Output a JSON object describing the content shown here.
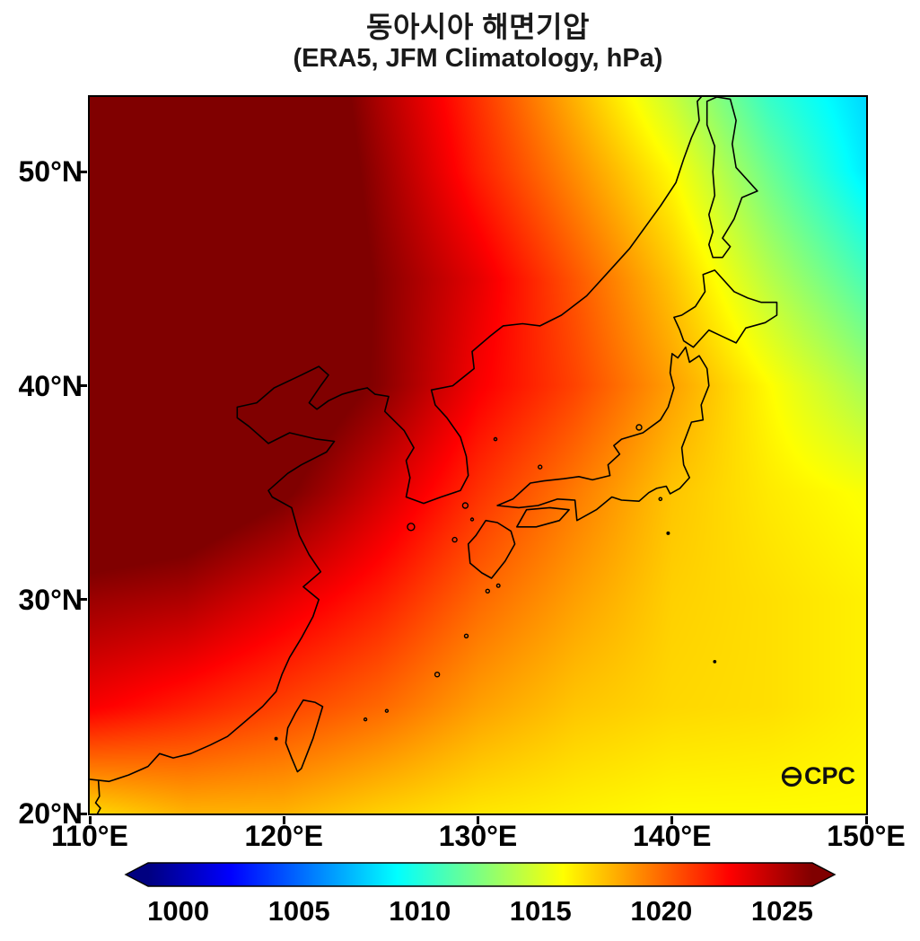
{
  "title": "동아시아 해면기압",
  "subtitle": "(ERA5, JFM Climatology, hPa)",
  "logo": {
    "text": "CPC",
    "icon": "globe-circle-icon"
  },
  "axes": {
    "x_ticks": [
      {
        "value": 110,
        "label": "110°E"
      },
      {
        "value": 120,
        "label": "120°E"
      },
      {
        "value": 130,
        "label": "130°E"
      },
      {
        "value": 140,
        "label": "140°E"
      },
      {
        "value": 150,
        "label": "150°E"
      }
    ],
    "y_ticks": [
      {
        "value": 50,
        "label": "50°N"
      },
      {
        "value": 40,
        "label": "40°N"
      },
      {
        "value": 30,
        "label": "30°N"
      },
      {
        "value": 20,
        "label": "20°N"
      }
    ]
  },
  "colorbar": {
    "vmin": 998.75,
    "vmax": 1026.25,
    "ticks": [
      {
        "value": 1000,
        "label": "1000"
      },
      {
        "value": 1005,
        "label": "1005"
      },
      {
        "value": 1010,
        "label": "1010"
      },
      {
        "value": 1015,
        "label": "1015"
      },
      {
        "value": 1020,
        "label": "1020"
      },
      {
        "value": 1025,
        "label": "1025"
      }
    ]
  },
  "chart_data": {
    "type": "heatmap",
    "title": "동아시아 해면기압",
    "subtitle": "(ERA5, JFM Climatology, hPa)",
    "units": "hPa",
    "lon_range": [
      110,
      150
    ],
    "lat_range": [
      20,
      53.5
    ],
    "lon": [
      110,
      115,
      120,
      125,
      130,
      135,
      140,
      145,
      150
    ],
    "lat": [
      20,
      25,
      30,
      35,
      40,
      45,
      50,
      53.5
    ],
    "values": [
      [
        1017,
        1018,
        1018,
        1017.2,
        1016.6,
        1016.3,
        1016,
        1016,
        1016
      ],
      [
        1023,
        1022,
        1021,
        1020,
        1018.5,
        1017.5,
        1017,
        1016.8,
        1016.3
      ],
      [
        1025.5,
        1025,
        1023.5,
        1022,
        1020,
        1018.5,
        1017.2,
        1016.8,
        1016.3
      ],
      [
        1028.5,
        1028,
        1026.5,
        1024,
        1021.5,
        1019.5,
        1017.5,
        1016.5,
        1015.8
      ],
      [
        1031,
        1030,
        1028,
        1026,
        1023,
        1021,
        1018.5,
        1016,
        1013.5
      ],
      [
        1033,
        1031,
        1029,
        1026,
        1023.5,
        1020.5,
        1017.5,
        1014,
        1011
      ],
      [
        1033,
        1032,
        1029,
        1025.5,
        1022,
        1019,
        1016,
        1012,
        1008.5
      ],
      [
        1033,
        1032,
        1029,
        1025,
        1021.5,
        1018,
        1014.5,
        1010.5,
        1008
      ]
    ],
    "colormap": "jet",
    "colormap_stops": [
      [
        0,
        "#000080"
      ],
      [
        0.125,
        "#0000ff"
      ],
      [
        0.375,
        "#00ffff"
      ],
      [
        0.625,
        "#ffff00"
      ],
      [
        0.875,
        "#ff0000"
      ],
      [
        1,
        "#800000"
      ]
    ],
    "coastlines": [
      {
        "name": "china-coast",
        "points": [
          [
            110,
            21.6
          ],
          [
            111,
            21.5
          ],
          [
            112,
            21.8
          ],
          [
            113,
            22.2
          ],
          [
            113.6,
            22.8
          ],
          [
            114.3,
            22.6
          ],
          [
            115.2,
            22.8
          ],
          [
            116.2,
            23.2
          ],
          [
            117.1,
            23.6
          ],
          [
            118,
            24.3
          ],
          [
            118.9,
            25.0
          ],
          [
            119.6,
            25.7
          ],
          [
            119.9,
            26.5
          ],
          [
            120.3,
            27.3
          ],
          [
            120.9,
            28.2
          ],
          [
            121.5,
            29.2
          ],
          [
            121.8,
            30.0
          ],
          [
            121.0,
            30.6
          ],
          [
            121.9,
            31.3
          ],
          [
            121.3,
            32.1
          ],
          [
            120.8,
            33.0
          ],
          [
            120.4,
            34.3
          ],
          [
            119.4,
            34.8
          ],
          [
            119.2,
            35.1
          ],
          [
            120.2,
            35.9
          ],
          [
            120.9,
            36.3
          ],
          [
            122.2,
            36.9
          ],
          [
            122.6,
            37.4
          ],
          [
            121.7,
            37.5
          ],
          [
            120.3,
            37.8
          ],
          [
            119.2,
            37.3
          ],
          [
            118.2,
            38.1
          ],
          [
            117.6,
            38.5
          ],
          [
            117.6,
            39.0
          ],
          [
            118.6,
            39.2
          ],
          [
            119.5,
            39.9
          ],
          [
            120.9,
            40.5
          ],
          [
            121.8,
            40.9
          ],
          [
            122.3,
            40.5
          ],
          [
            121.9,
            40.0
          ],
          [
            121.3,
            39.2
          ],
          [
            121.7,
            38.9
          ],
          [
            122.3,
            39.3
          ],
          [
            123.0,
            39.6
          ],
          [
            123.8,
            39.8
          ],
          [
            124.3,
            39.9
          ]
        ]
      },
      {
        "name": "korea-coast",
        "points": [
          [
            124.3,
            39.9
          ],
          [
            124.7,
            39.6
          ],
          [
            125.4,
            39.5
          ],
          [
            125.2,
            38.8
          ],
          [
            126.2,
            37.9
          ],
          [
            126.7,
            37.1
          ],
          [
            126.3,
            36.5
          ],
          [
            126.5,
            35.7
          ],
          [
            126.3,
            34.8
          ],
          [
            127.2,
            34.5
          ],
          [
            128.1,
            34.8
          ],
          [
            129.1,
            35.1
          ],
          [
            129.5,
            35.8
          ],
          [
            129.4,
            36.7
          ],
          [
            129.1,
            37.6
          ],
          [
            128.4,
            38.5
          ],
          [
            127.8,
            39.1
          ],
          [
            127.6,
            39.8
          ],
          [
            128.7,
            40.0
          ],
          [
            129.8,
            40.8
          ],
          [
            129.7,
            41.6
          ],
          [
            130.6,
            42.3
          ]
        ]
      },
      {
        "name": "russia-coast",
        "points": [
          [
            130.6,
            42.3
          ],
          [
            131.3,
            42.8
          ],
          [
            132.3,
            42.9
          ],
          [
            133.2,
            42.8
          ],
          [
            134.3,
            43.3
          ],
          [
            135.6,
            44.2
          ],
          [
            136.8,
            45.4
          ],
          [
            137.8,
            46.4
          ],
          [
            138.6,
            47.4
          ],
          [
            139.4,
            48.4
          ],
          [
            140.2,
            49.5
          ],
          [
            140.6,
            50.6
          ],
          [
            141.0,
            51.6
          ],
          [
            141.4,
            52.4
          ],
          [
            141.3,
            53.3
          ],
          [
            141.5,
            53.5
          ]
        ]
      },
      {
        "name": "leizhou-peninsula",
        "points": [
          [
            110.45,
            21.5
          ],
          [
            110.5,
            20.8
          ],
          [
            110.3,
            20.5
          ],
          [
            110.55,
            20.25
          ],
          [
            110.4,
            20.0
          ]
        ]
      },
      {
        "name": "kyushu",
        "points": [
          [
            130.2,
            31.25
          ],
          [
            129.6,
            31.7
          ],
          [
            129.5,
            32.6
          ],
          [
            129.9,
            33.0
          ],
          [
            130.4,
            33.7
          ],
          [
            131.0,
            33.6
          ],
          [
            131.7,
            33.2
          ],
          [
            131.9,
            32.6
          ],
          [
            131.4,
            31.8
          ],
          [
            130.7,
            31.0
          ],
          [
            130.2,
            31.25
          ]
        ]
      },
      {
        "name": "shikoku",
        "points": [
          [
            132.0,
            33.4
          ],
          [
            133.0,
            33.4
          ],
          [
            134.2,
            33.7
          ],
          [
            134.7,
            34.2
          ],
          [
            133.7,
            34.3
          ],
          [
            132.5,
            34.2
          ],
          [
            132.0,
            33.4
          ]
        ]
      },
      {
        "name": "honshu",
        "points": [
          [
            131.0,
            34.4
          ],
          [
            132.1,
            34.3
          ],
          [
            133.1,
            34.4
          ],
          [
            134.1,
            34.7
          ],
          [
            135.0,
            34.65
          ],
          [
            135.1,
            33.7
          ],
          [
            136.1,
            34.2
          ],
          [
            136.9,
            34.8
          ],
          [
            137.4,
            34.65
          ],
          [
            138.3,
            34.6
          ],
          [
            138.8,
            35.0
          ],
          [
            139.2,
            35.2
          ],
          [
            139.7,
            35.3
          ],
          [
            139.9,
            34.95
          ],
          [
            140.4,
            35.2
          ],
          [
            140.9,
            35.7
          ],
          [
            140.6,
            36.3
          ],
          [
            140.5,
            37.1
          ],
          [
            141.0,
            38.3
          ],
          [
            141.6,
            38.4
          ],
          [
            141.5,
            39.1
          ],
          [
            141.9,
            40.0
          ],
          [
            141.8,
            40.8
          ],
          [
            141.4,
            41.4
          ],
          [
            140.9,
            41.1
          ],
          [
            140.7,
            41.8
          ],
          [
            140.3,
            41.3
          ],
          [
            140.0,
            41.5
          ],
          [
            139.9,
            40.6
          ],
          [
            140.1,
            39.9
          ],
          [
            139.8,
            39.0
          ],
          [
            139.4,
            38.4
          ],
          [
            138.5,
            37.8
          ],
          [
            137.4,
            37.5
          ],
          [
            137.0,
            37.2
          ],
          [
            137.3,
            36.8
          ],
          [
            136.7,
            36.3
          ],
          [
            136.8,
            35.8
          ],
          [
            135.9,
            35.6
          ],
          [
            135.2,
            35.75
          ],
          [
            134.4,
            35.65
          ],
          [
            133.4,
            35.55
          ],
          [
            132.7,
            35.45
          ],
          [
            131.8,
            34.7
          ],
          [
            131.0,
            34.4
          ]
        ]
      },
      {
        "name": "hokkaido",
        "points": [
          [
            140.4,
            42.6
          ],
          [
            140.6,
            42.1
          ],
          [
            141.1,
            41.8
          ],
          [
            141.9,
            42.6
          ],
          [
            142.6,
            42.3
          ],
          [
            143.3,
            42.0
          ],
          [
            143.8,
            42.7
          ],
          [
            144.8,
            42.95
          ],
          [
            145.4,
            43.3
          ],
          [
            145.4,
            43.9
          ],
          [
            144.6,
            43.9
          ],
          [
            143.9,
            44.1
          ],
          [
            143.2,
            44.4
          ],
          [
            142.2,
            45.4
          ],
          [
            141.6,
            45.2
          ],
          [
            141.7,
            44.4
          ],
          [
            141.2,
            43.7
          ],
          [
            140.5,
            43.3
          ],
          [
            140.1,
            43.2
          ],
          [
            140.4,
            42.6
          ]
        ]
      },
      {
        "name": "sakhalin",
        "points": [
          [
            142.1,
            46.0
          ],
          [
            141.9,
            46.6
          ],
          [
            142.1,
            47.2
          ],
          [
            141.9,
            48.0
          ],
          [
            142.2,
            48.9
          ],
          [
            142.1,
            50.0
          ],
          [
            142.2,
            51.2
          ],
          [
            141.8,
            52.2
          ],
          [
            141.8,
            53.3
          ],
          [
            142.3,
            53.5
          ],
          [
            143.0,
            53.4
          ],
          [
            143.3,
            52.4
          ],
          [
            143.1,
            51.3
          ],
          [
            143.3,
            50.2
          ],
          [
            144.4,
            49.1
          ],
          [
            143.6,
            48.8
          ],
          [
            143.2,
            47.8
          ],
          [
            142.6,
            46.9
          ],
          [
            143.0,
            46.5
          ],
          [
            142.6,
            46.0
          ],
          [
            142.1,
            46.0
          ]
        ]
      },
      {
        "name": "taiwan",
        "points": [
          [
            121.0,
            25.3
          ],
          [
            121.6,
            25.2
          ],
          [
            122.0,
            25.0
          ],
          [
            121.8,
            24.4
          ],
          [
            121.5,
            23.5
          ],
          [
            121.2,
            22.8
          ],
          [
            120.9,
            22.1
          ],
          [
            120.7,
            21.95
          ],
          [
            120.4,
            22.6
          ],
          [
            120.1,
            23.3
          ],
          [
            120.2,
            24.0
          ],
          [
            120.6,
            24.7
          ],
          [
            121.0,
            25.3
          ]
        ]
      }
    ],
    "islands": [
      {
        "name": "jeju",
        "lon": 126.55,
        "lat": 33.4,
        "r": 4
      },
      {
        "name": "tsushima",
        "lon": 129.35,
        "lat": 34.4,
        "r": 3
      },
      {
        "name": "iki",
        "lon": 129.7,
        "lat": 33.75,
        "r": 1.5
      },
      {
        "name": "goto",
        "lon": 128.8,
        "lat": 32.8,
        "r": 2.5
      },
      {
        "name": "ulleungdo",
        "lon": 130.9,
        "lat": 37.5,
        "r": 1.6
      },
      {
        "name": "oki",
        "lon": 133.2,
        "lat": 36.2,
        "r": 2
      },
      {
        "name": "sado",
        "lon": 138.3,
        "lat": 38.05,
        "r": 3
      },
      {
        "name": "yakushima",
        "lon": 130.5,
        "lat": 30.4,
        "r": 2
      },
      {
        "name": "tanegashima",
        "lon": 131.05,
        "lat": 30.65,
        "r": 1.8
      },
      {
        "name": "amami",
        "lon": 129.4,
        "lat": 28.3,
        "r": 2
      },
      {
        "name": "okinawa",
        "lon": 127.9,
        "lat": 26.5,
        "r": 2.5
      },
      {
        "name": "miyako",
        "lon": 125.3,
        "lat": 24.8,
        "r": 1.5
      },
      {
        "name": "ishigaki",
        "lon": 124.2,
        "lat": 24.4,
        "r": 1.5
      },
      {
        "name": "izu-oshima",
        "lon": 139.4,
        "lat": 34.7,
        "r": 1.6
      },
      {
        "name": "hachijojima",
        "lon": 139.8,
        "lat": 33.1,
        "r": 1.3
      },
      {
        "name": "chichijima",
        "lon": 142.2,
        "lat": 27.1,
        "r": 1.2
      },
      {
        "name": "penghu",
        "lon": 119.6,
        "lat": 23.5,
        "r": 1.3
      }
    ]
  }
}
